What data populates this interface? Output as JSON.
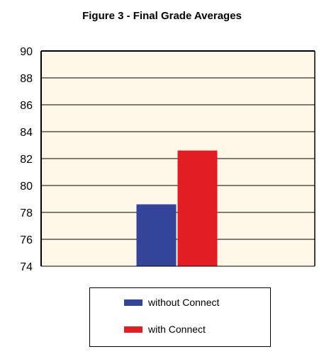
{
  "chart_data": {
    "type": "bar",
    "title": "Figure 3 - Final Grade Averages",
    "xlabel": "",
    "ylabel": "",
    "ylim": [
      74,
      90
    ],
    "yticks": [
      74,
      76,
      78,
      80,
      82,
      84,
      86,
      88,
      90
    ],
    "grid": true,
    "legend_position": "bottom",
    "plot_background": "#fff8e8",
    "series": [
      {
        "name": "without Connect",
        "color": "#334499",
        "values": [
          78.6
        ]
      },
      {
        "name": "with Connect",
        "color": "#e21d25",
        "values": [
          82.6
        ]
      }
    ]
  }
}
